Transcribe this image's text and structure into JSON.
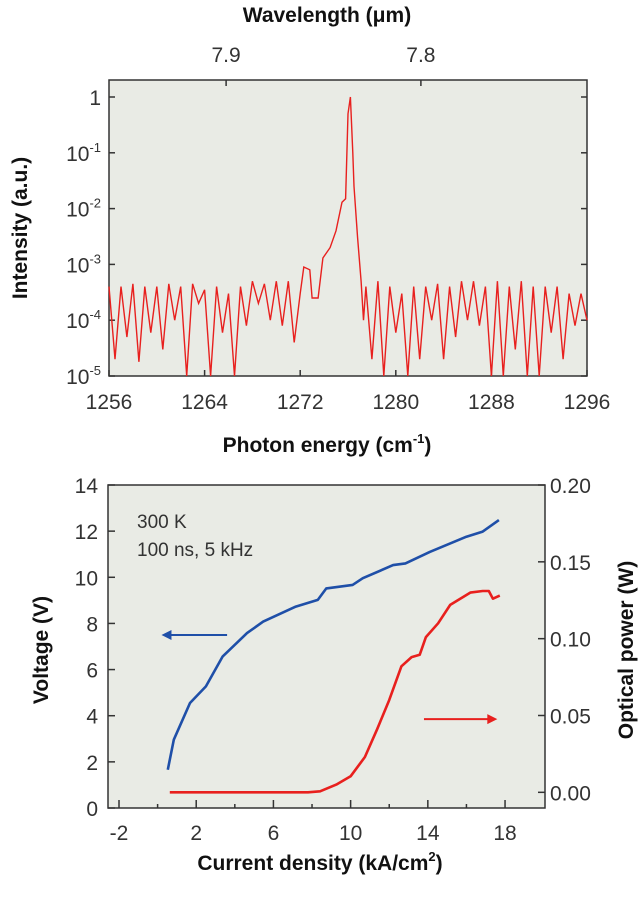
{
  "chart_data": [
    {
      "type": "line",
      "xlabel": "Photon energy (cm",
      "xlabel_sup": "-1",
      "xlabel_end": ")",
      "ylabel": "Intensity (a.u.)",
      "x2label": "Wavelength (μm)",
      "xlim": [
        1256,
        1296
      ],
      "ylim": [
        1e-05,
        1
      ],
      "yscale": "log",
      "xticks": [
        1256,
        1264,
        1272,
        1280,
        1288,
        1296
      ],
      "yticks": [
        {
          "base": "1",
          "exp": ""
        },
        {
          "base": "10",
          "exp": "-1"
        },
        {
          "base": "10",
          "exp": "-2"
        },
        {
          "base": "10",
          "exp": "-3"
        },
        {
          "base": "10",
          "exp": "-4"
        },
        {
          "base": "10",
          "exp": "-5"
        }
      ],
      "x2ticks": [
        {
          "label": "7.9",
          "cm": 1265.8
        },
        {
          "label": "7.8",
          "cm": 1282.1
        }
      ],
      "background": "#e9ebe5",
      "color": "#e8201e",
      "x_left": [
        1256,
        1256.5,
        1257,
        1257.5,
        1258,
        1258.5,
        1259,
        1259.5,
        1260,
        1260.5,
        1261,
        1261.5,
        1262,
        1262.5,
        1263,
        1263.5,
        1264,
        1264.5,
        1265,
        1265.5,
        1266,
        1266.5,
        1267,
        1267.5,
        1268,
        1268.5,
        1269,
        1269.5,
        1270,
        1270.5,
        1271,
        1271.5,
        1272
      ],
      "y_left": [
        0.0004,
        2e-05,
        0.0004,
        5e-05,
        0.00045,
        1.8e-05,
        0.0004,
        6e-05,
        0.0004,
        3e-05,
        0.00045,
        0.0001,
        0.0004,
        1e-05,
        0.00045,
        0.0002,
        0.00035,
        1e-05,
        0.0004,
        6e-05,
        0.0003,
        1e-05,
        0.0004,
        8e-05,
        0.0005,
        0.0002,
        0.00045,
        0.0001,
        0.0005,
        8e-05,
        0.0005,
        4e-05,
        0.0003
      ],
      "x_peak": [
        1272.3,
        1272.8,
        1273.0,
        1273.5,
        1273.9,
        1274.5,
        1275.0,
        1275.5,
        1275.8,
        1276.0,
        1276.2,
        1276.4,
        1276.5,
        1276.8,
        1277.1,
        1277.3
      ],
      "y_peak": [
        0.0009,
        0.0008,
        0.00025,
        0.00025,
        0.0013,
        0.002,
        0.004,
        0.013,
        0.015,
        0.5,
        1.0,
        0.1,
        0.025,
        0.003,
        0.0005,
        0.0001
      ],
      "x_right": [
        1277.5,
        1278,
        1278.5,
        1279,
        1279.5,
        1280,
        1280.5,
        1281,
        1281.5,
        1282,
        1282.5,
        1283,
        1283.5,
        1284,
        1284.5,
        1285,
        1285.5,
        1286,
        1286.5,
        1287,
        1287.5,
        1288,
        1288.5,
        1289,
        1289.5,
        1290,
        1290.5,
        1291,
        1291.5,
        1292,
        1292.5,
        1293,
        1293.5,
        1294,
        1294.5,
        1295,
        1295.5,
        1296
      ],
      "y_right": [
        0.0004,
        2e-05,
        0.0005,
        1e-05,
        0.0004,
        6e-05,
        0.0003,
        1e-05,
        0.0004,
        2e-05,
        0.0004,
        0.0001,
        0.00045,
        2e-05,
        0.0004,
        5e-05,
        0.0005,
        0.0001,
        0.0005,
        8e-05,
        0.0004,
        1e-05,
        0.0005,
        1e-05,
        0.0004,
        3e-05,
        0.0005,
        1e-05,
        0.0004,
        1e-05,
        0.0004,
        6e-05,
        0.0004,
        2e-05,
        0.0003,
        8e-05,
        0.0003,
        0.0001
      ]
    },
    {
      "type": "line",
      "xlabel": "Current density (kA/cm",
      "xlabel_sup": "2",
      "xlabel_end": ")",
      "ylabel": "Voltage (V)",
      "y2label": "Optical power (W)",
      "xlim": [
        -2.57,
        20.07
      ],
      "ylim": [
        0,
        14
      ],
      "y2lim": [
        -0.0102,
        0.2
      ],
      "xticks": [
        -2,
        2,
        6,
        10,
        14,
        18
      ],
      "xminor": [
        -2,
        0,
        2,
        4,
        6,
        8,
        10,
        12,
        14,
        16,
        18
      ],
      "yticks": [
        0,
        2,
        4,
        6,
        8,
        10,
        12,
        14
      ],
      "y2ticks": [
        "0.00",
        "0.05",
        "0.10",
        "0.15",
        "0.20"
      ],
      "annotations": [
        "300 K",
        "100 ns, 5 kHz"
      ],
      "background": "#e9ebe5",
      "series": [
        {
          "axis": "left",
          "color": "#1f4fa8",
          "x": [
            0.53,
            0.84,
            1.68,
            2.5,
            3.37,
            4.63,
            5.47,
            7.16,
            8.3,
            8.74,
            10.1,
            10.63,
            12.2,
            12.84,
            14.1,
            15.16,
            16.0,
            16.84,
            17.68
          ],
          "y": [
            1.66,
            2.96,
            4.55,
            5.27,
            6.57,
            7.58,
            8.08,
            8.73,
            9.02,
            9.52,
            9.67,
            9.96,
            10.53,
            10.6,
            11.1,
            11.47,
            11.76,
            11.98,
            12.48
          ],
          "arrow": {
            "from": [
              3.6,
              7.5
            ],
            "to": [
              0.2,
              7.5
            ]
          }
        },
        {
          "axis": "right",
          "color": "#e8201e",
          "x": [
            0.63,
            7.79,
            8.42,
            9.26,
            10.0,
            10.74,
            11.37,
            12.0,
            12.63,
            13.16,
            13.58,
            13.9,
            14.53,
            15.16,
            16.2,
            16.84,
            17.16,
            17.37,
            17.73
          ],
          "y": [
            0,
            0,
            0.0007,
            0.005,
            0.0104,
            0.023,
            0.041,
            0.06,
            0.082,
            0.088,
            0.0895,
            0.101,
            0.11,
            0.122,
            0.13,
            0.131,
            0.131,
            0.126,
            0.128
          ],
          "arrow": {
            "from": [
              13.8,
              3.85
            ],
            "to": [
              17.6,
              3.85
            ]
          }
        }
      ]
    }
  ]
}
